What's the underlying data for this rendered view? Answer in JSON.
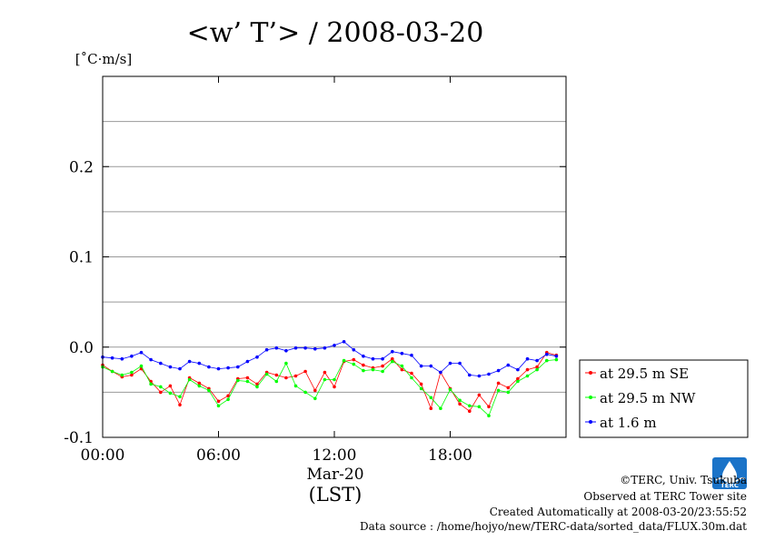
{
  "chart_data": {
    "type": "line",
    "title": "<w’ T’> / 2008-03-20",
    "unit_label": "[˚C·m/s]",
    "xlabel_date": "Mar-20",
    "xlabel": "(LST)",
    "x_range": [
      "00:00",
      "24:00"
    ],
    "ylim": [
      -0.1,
      0.3
    ],
    "y_ticks": [
      {
        "value": 0.2,
        "label": "0.2"
      },
      {
        "value": 0.1,
        "label": "0.1"
      },
      {
        "value": 0.0,
        "label": "0.0"
      },
      {
        "value": -0.1,
        "label": "-0.1"
      }
    ],
    "y_gridlines": [
      -0.05,
      0.0,
      0.05,
      0.1,
      0.15,
      0.2,
      0.25
    ],
    "x_ticks": [
      {
        "value": "00:00",
        "label": "00:00"
      },
      {
        "value": "06:00",
        "label": "06:00"
      },
      {
        "value": "12:00",
        "label": "12:00"
      },
      {
        "value": "18:00",
        "label": "18:00"
      }
    ],
    "grid": true,
    "legend_position": "outside-bottom-right",
    "x": [
      "00:00",
      "00:30",
      "01:00",
      "01:30",
      "02:00",
      "02:30",
      "03:00",
      "03:30",
      "04:00",
      "04:30",
      "05:00",
      "05:30",
      "06:00",
      "06:30",
      "07:00",
      "07:30",
      "08:00",
      "08:30",
      "09:00",
      "09:30",
      "10:00",
      "10:30",
      "11:00",
      "11:30",
      "12:00",
      "12:30",
      "13:00",
      "13:30",
      "14:00",
      "14:30",
      "15:00",
      "15:30",
      "16:00",
      "16:30",
      "17:00",
      "17:30",
      "18:00",
      "18:30",
      "19:00",
      "19:30",
      "20:00",
      "20:30",
      "21:00",
      "21:30",
      "22:00",
      "22:30",
      "23:00",
      "23:30"
    ],
    "series": [
      {
        "name": "at 29.5 m SE",
        "color": "#ff0000",
        "values": [
          -0.02,
          -0.027,
          -0.033,
          -0.031,
          -0.024,
          -0.038,
          -0.05,
          -0.043,
          -0.064,
          -0.034,
          -0.04,
          -0.046,
          -0.06,
          -0.054,
          -0.035,
          -0.034,
          -0.041,
          -0.028,
          -0.031,
          -0.034,
          -0.032,
          -0.027,
          -0.048,
          -0.028,
          -0.044,
          -0.016,
          -0.014,
          -0.02,
          -0.023,
          -0.021,
          -0.013,
          -0.025,
          -0.029,
          -0.041,
          -0.068,
          -0.028,
          -0.046,
          -0.063,
          -0.071,
          -0.053,
          -0.066,
          -0.04,
          -0.045,
          -0.035,
          -0.025,
          -0.022,
          -0.006,
          -0.009
        ]
      },
      {
        "name": "at 29.5 m NW",
        "color": "#00ff00",
        "values": [
          -0.022,
          -0.027,
          -0.031,
          -0.028,
          -0.021,
          -0.041,
          -0.044,
          -0.051,
          -0.055,
          -0.036,
          -0.043,
          -0.048,
          -0.065,
          -0.058,
          -0.037,
          -0.038,
          -0.044,
          -0.03,
          -0.038,
          -0.018,
          -0.043,
          -0.05,
          -0.057,
          -0.036,
          -0.036,
          -0.015,
          -0.019,
          -0.026,
          -0.025,
          -0.027,
          -0.016,
          -0.021,
          -0.034,
          -0.046,
          -0.056,
          -0.068,
          -0.047,
          -0.059,
          -0.065,
          -0.066,
          -0.076,
          -0.048,
          -0.05,
          -0.038,
          -0.032,
          -0.025,
          -0.015,
          -0.014
        ]
      },
      {
        "name": "at 1.6 m",
        "color": "#0000ff",
        "values": [
          -0.011,
          -0.012,
          -0.013,
          -0.01,
          -0.006,
          -0.014,
          -0.018,
          -0.022,
          -0.024,
          -0.016,
          -0.018,
          -0.022,
          -0.024,
          -0.023,
          -0.022,
          -0.016,
          -0.011,
          -0.003,
          -0.001,
          -0.004,
          -0.001,
          -0.001,
          -0.002,
          -0.001,
          0.002,
          0.006,
          -0.003,
          -0.01,
          -0.013,
          -0.013,
          -0.005,
          -0.007,
          -0.009,
          -0.021,
          -0.021,
          -0.028,
          -0.018,
          -0.018,
          -0.031,
          -0.032,
          -0.03,
          -0.026,
          -0.02,
          -0.025,
          -0.013,
          -0.015,
          -0.008,
          -0.01
        ]
      }
    ]
  },
  "footer": {
    "copyright": "©TERC, Univ. Tsukuba",
    "observed": "Observed at TERC Tower site",
    "created": "Created Automatically at 2008-03-20/23:55:52",
    "source": "Data source : /home/hojyo/new/TERC-data/sorted_data/FLUX.30m.dat"
  },
  "logo": {
    "text": "TERC",
    "color": "#1a73c8",
    "icon": "terc-logo-icon"
  }
}
